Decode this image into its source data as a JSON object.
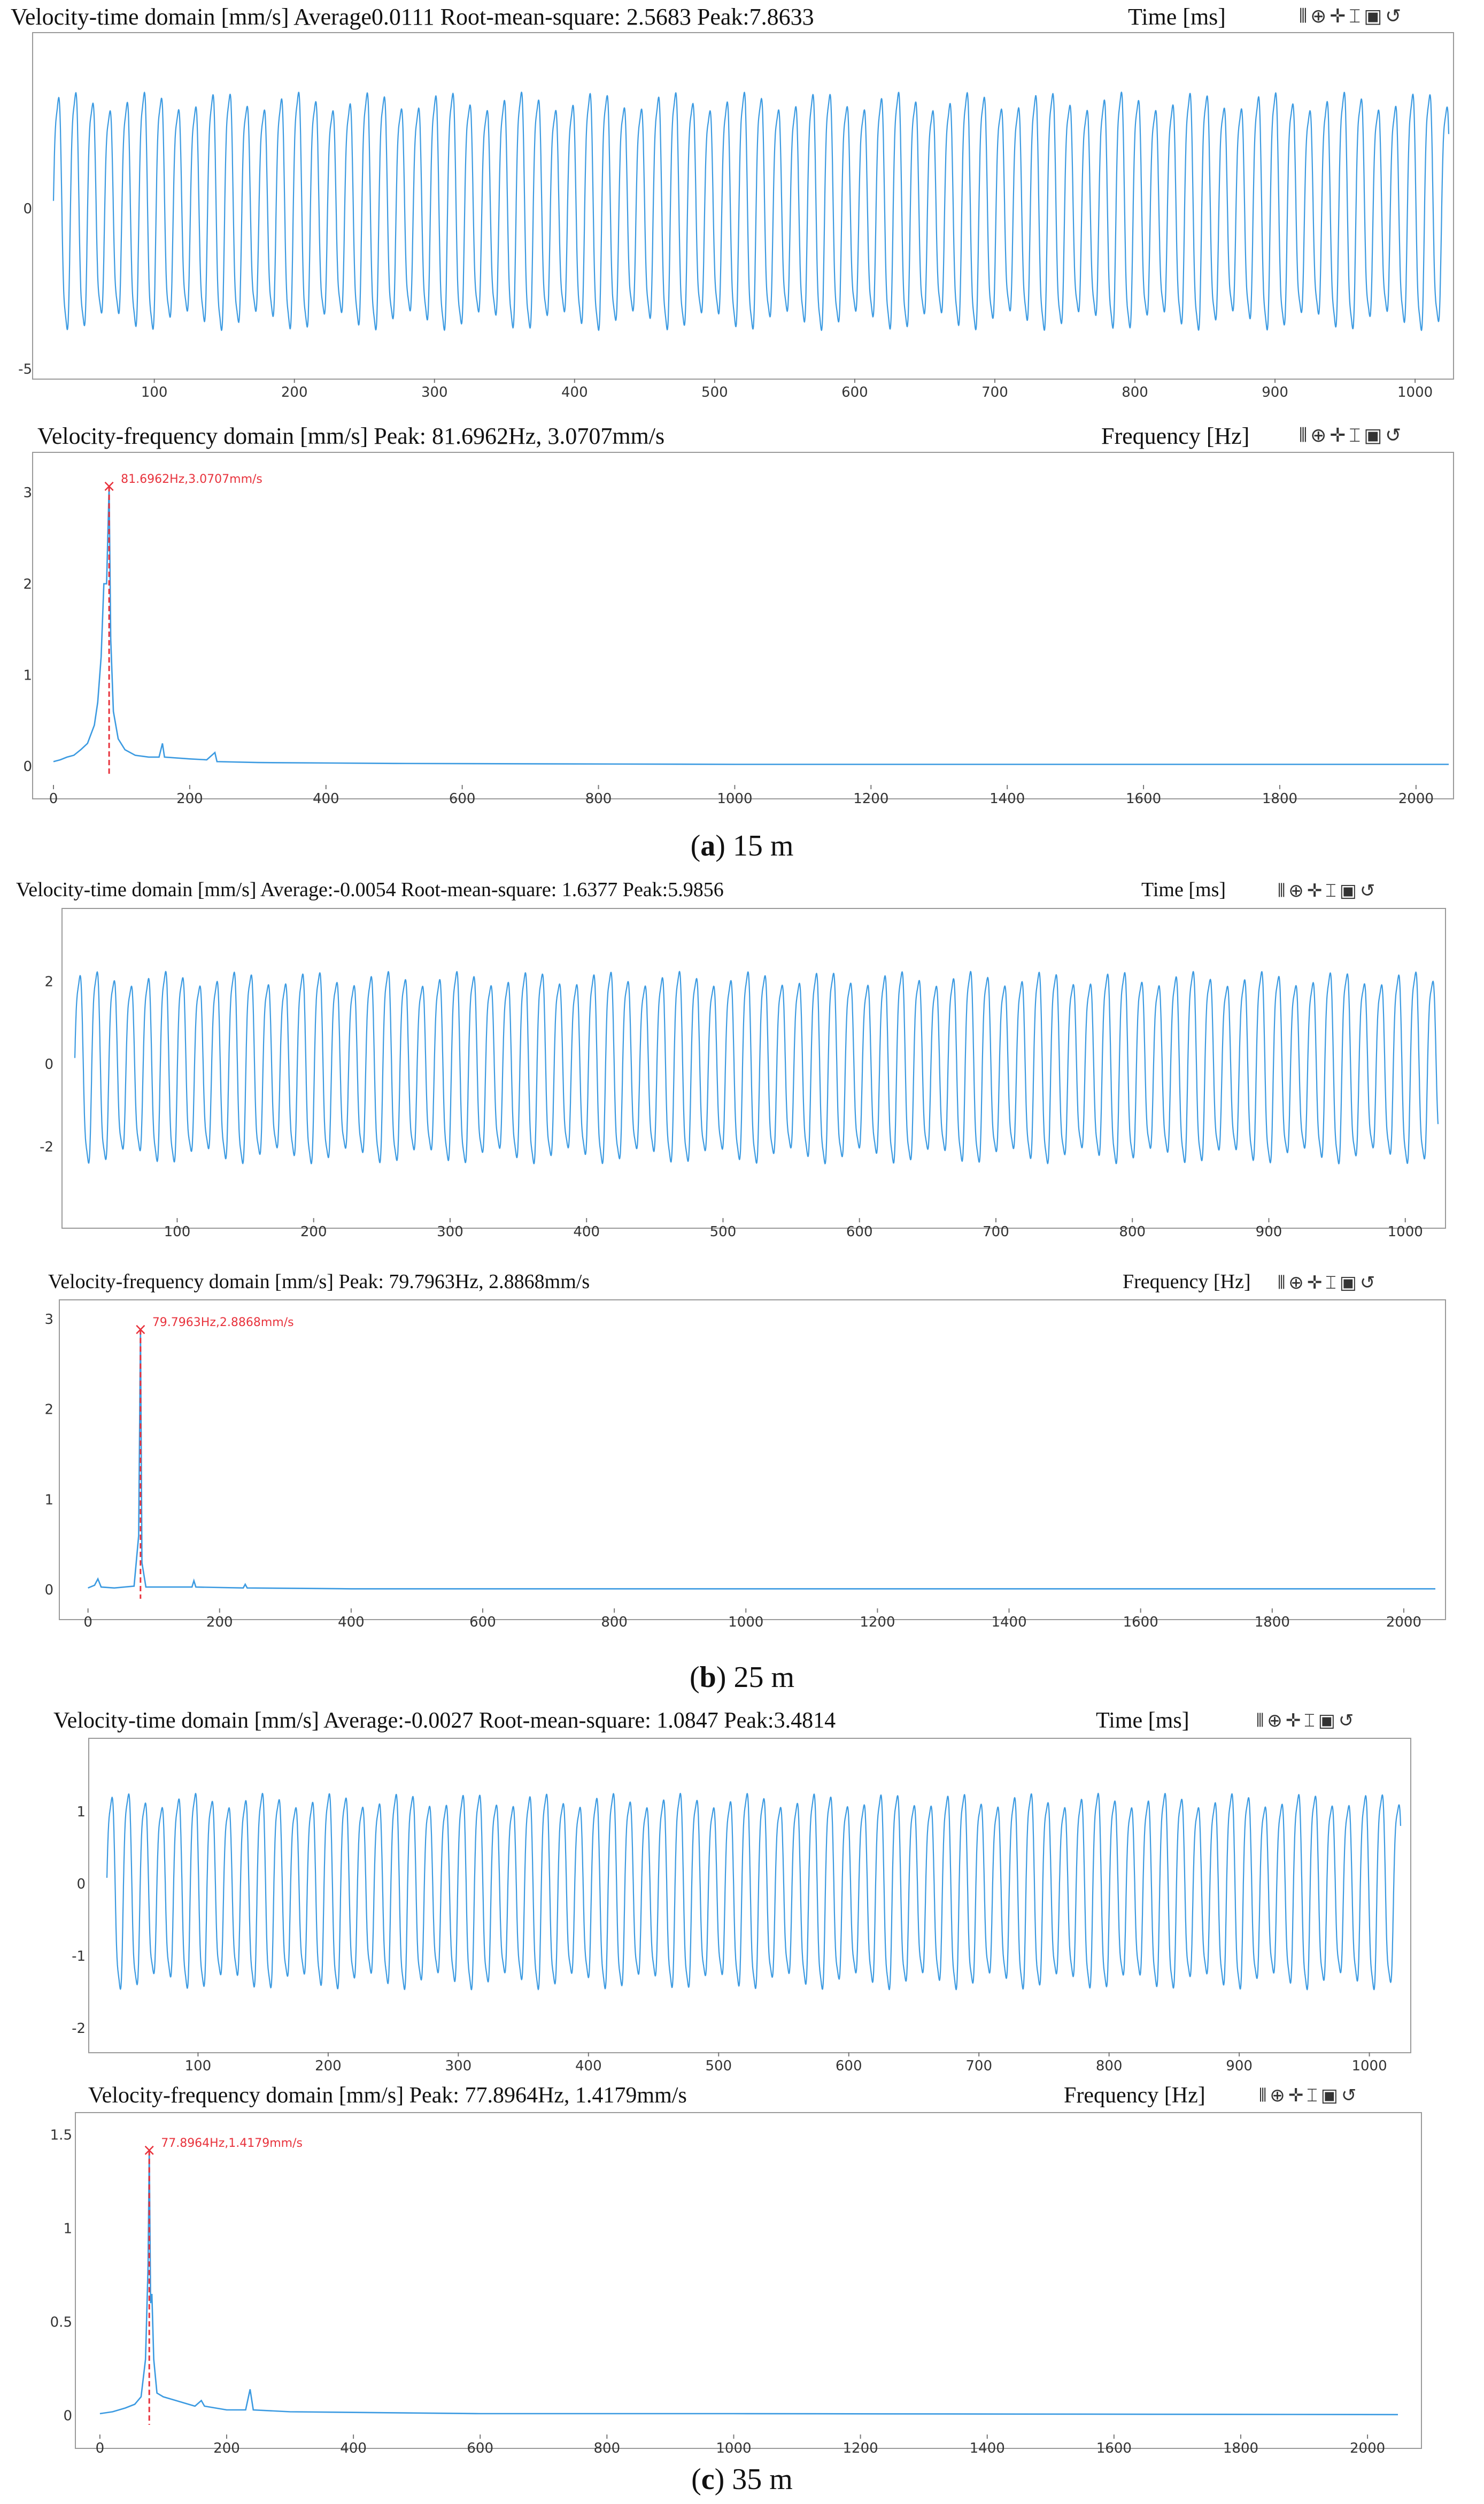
{
  "panels": [
    {
      "caption_letter": "a",
      "caption_rest": " 15 m",
      "time": {
        "title": "Velocity-time domain [mm/s] Average0.0111 Root-mean-square: 2.5683 Peak:7.8633",
        "axis_unit_label": "Time [ms]",
        "toolbar_icons": [
          "pan-icon",
          "zoom-icon",
          "move-icon",
          "cursor-icon",
          "fit-icon",
          "reset-icon"
        ]
      },
      "freq": {
        "title": "Velocity-frequency domain [mm/s] Peak: 81.6962Hz, 3.0707mm/s",
        "axis_unit_label": "Frequency [Hz]",
        "marker_label": "81.6962Hz,3.0707mm/s",
        "toolbar_icons": [
          "pan-icon",
          "zoom-icon",
          "move-icon",
          "cursor-icon",
          "fit-icon",
          "reset-icon"
        ]
      }
    },
    {
      "caption_letter": "b",
      "caption_rest": " 25 m",
      "time": {
        "title": "Velocity-time domain [mm/s] Average:-0.0054 Root-mean-square: 1.6377 Peak:5.9856",
        "axis_unit_label": "Time [ms]",
        "toolbar_icons": [
          "pan-icon",
          "zoom-icon",
          "move-icon",
          "cursor-icon",
          "fit-icon",
          "reset-icon"
        ]
      },
      "freq": {
        "title": "Velocity-frequency domain [mm/s] Peak: 79.7963Hz, 2.8868mm/s",
        "axis_unit_label": "Frequency [Hz]",
        "marker_label": "79.7963Hz,2.8868mm/s",
        "toolbar_icons": [
          "pan-icon",
          "zoom-icon",
          "move-icon",
          "cursor-icon",
          "fit-icon",
          "reset-icon"
        ]
      }
    },
    {
      "caption_letter": "c",
      "caption_rest": " 35 m",
      "time": {
        "title": "Velocity-time domain [mm/s] Average:-0.0027 Root-mean-square: 1.0847 Peak:3.4814",
        "axis_unit_label": "Time [ms]",
        "toolbar_icons": [
          "pan-icon",
          "zoom-icon",
          "move-icon",
          "cursor-icon",
          "fit-icon",
          "reset-icon"
        ]
      },
      "freq": {
        "title": "Velocity-frequency domain [mm/s] Peak: 77.8964Hz, 1.4179mm/s",
        "axis_unit_label": "Frequency [Hz]",
        "marker_label": "77.8964Hz,1.4179mm/s",
        "toolbar_icons": [
          "pan-icon",
          "zoom-icon",
          "move-icon",
          "cursor-icon",
          "fit-icon",
          "reset-icon"
        ]
      }
    }
  ],
  "colors": {
    "signal": "#3b9ae1",
    "marker": "#e8323c",
    "axis_text": "#333333",
    "frame": "#9a9a9a"
  },
  "chart_data": [
    {
      "panel": "a",
      "kind": "time",
      "type": "line",
      "xlim": [
        28,
        1024
      ],
      "ylim": [
        -5,
        5
      ],
      "x_ticks": [
        100,
        200,
        300,
        400,
        500,
        600,
        700,
        800,
        900,
        1000
      ],
      "y_ticks": [
        -5,
        0
      ],
      "cycles": 81.4,
      "amp_pos": 4.2,
      "amp_neg": -4.4
    },
    {
      "panel": "a",
      "kind": "freq",
      "type": "line",
      "xlim": [
        0,
        2048
      ],
      "ylim": [
        -0.1,
        3.3
      ],
      "x_ticks": [
        0,
        200,
        400,
        600,
        800,
        1000,
        1200,
        1400,
        1600,
        1800,
        2000
      ],
      "y_ticks": [
        0,
        1,
        2,
        3
      ],
      "peak": {
        "x": 81.6962,
        "y": 3.0707
      },
      "series": [
        [
          0,
          0.05
        ],
        [
          10,
          0.07
        ],
        [
          20,
          0.1
        ],
        [
          30,
          0.12
        ],
        [
          40,
          0.18
        ],
        [
          50,
          0.25
        ],
        [
          60,
          0.45
        ],
        [
          65,
          0.7
        ],
        [
          70,
          1.2
        ],
        [
          74,
          2.0
        ],
        [
          78,
          2.0
        ],
        [
          81.7,
          3.0707
        ],
        [
          84,
          1.4
        ],
        [
          88,
          0.6
        ],
        [
          95,
          0.3
        ],
        [
          105,
          0.18
        ],
        [
          120,
          0.12
        ],
        [
          140,
          0.1
        ],
        [
          155,
          0.1
        ],
        [
          160,
          0.25
        ],
        [
          163,
          0.1
        ],
        [
          200,
          0.08
        ],
        [
          225,
          0.07
        ],
        [
          237,
          0.15
        ],
        [
          240,
          0.05
        ],
        [
          300,
          0.04
        ],
        [
          500,
          0.03
        ],
        [
          1000,
          0.02
        ],
        [
          1500,
          0.02
        ],
        [
          2048,
          0.02
        ]
      ]
    },
    {
      "panel": "b",
      "kind": "time",
      "type": "line",
      "xlim": [
        25,
        1024
      ],
      "ylim": [
        -3.5,
        3.5
      ],
      "x_ticks": [
        100,
        200,
        300,
        400,
        500,
        600,
        700,
        800,
        900,
        1000
      ],
      "y_ticks": [
        -2,
        0,
        2
      ],
      "cycles": 79.6,
      "amp_pos": 2.6,
      "amp_neg": -2.8
    },
    {
      "panel": "b",
      "kind": "freq",
      "type": "line",
      "xlim": [
        -20,
        2048
      ],
      "ylim": [
        -0.1,
        3.1
      ],
      "x_ticks": [
        0,
        200,
        400,
        600,
        800,
        1000,
        1200,
        1400,
        1600,
        1800,
        2000
      ],
      "y_ticks": [
        0,
        1,
        2,
        3
      ],
      "peak": {
        "x": 79.7963,
        "y": 2.8868
      },
      "series": [
        [
          0,
          0.02
        ],
        [
          10,
          0.05
        ],
        [
          15,
          0.12
        ],
        [
          20,
          0.03
        ],
        [
          40,
          0.02
        ],
        [
          70,
          0.04
        ],
        [
          77,
          0.6
        ],
        [
          79.8,
          2.8868
        ],
        [
          82,
          0.3
        ],
        [
          88,
          0.03
        ],
        [
          158,
          0.03
        ],
        [
          161,
          0.1
        ],
        [
          164,
          0.03
        ],
        [
          236,
          0.02
        ],
        [
          239,
          0.06
        ],
        [
          242,
          0.02
        ],
        [
          400,
          0.01
        ],
        [
          1000,
          0.01
        ],
        [
          2048,
          0.01
        ]
      ]
    },
    {
      "panel": "c",
      "kind": "time",
      "type": "line",
      "xlim": [
        30,
        1024
      ],
      "ylim": [
        -2.2,
        1.8
      ],
      "x_ticks": [
        100,
        200,
        300,
        400,
        500,
        600,
        700,
        800,
        900,
        1000
      ],
      "y_ticks": [
        -2,
        -1,
        0,
        1
      ],
      "cycles": 77.4,
      "amp_pos": 1.45,
      "amp_neg": -1.7
    },
    {
      "panel": "c",
      "kind": "freq",
      "type": "line",
      "xlim": [
        -10,
        2048
      ],
      "ylim": [
        -0.05,
        1.55
      ],
      "x_ticks": [
        0,
        200,
        400,
        600,
        800,
        1000,
        1200,
        1400,
        1600,
        1800,
        2000
      ],
      "y_ticks": [
        0,
        0.5,
        1,
        1.5
      ],
      "peak": {
        "x": 77.8964,
        "y": 1.4179
      },
      "series": [
        [
          0,
          0.01
        ],
        [
          20,
          0.02
        ],
        [
          40,
          0.04
        ],
        [
          55,
          0.06
        ],
        [
          65,
          0.1
        ],
        [
          72,
          0.3
        ],
        [
          76,
          0.8
        ],
        [
          77.9,
          1.4179
        ],
        [
          80,
          0.6
        ],
        [
          82,
          0.65
        ],
        [
          85,
          0.3
        ],
        [
          90,
          0.12
        ],
        [
          100,
          0.1
        ],
        [
          120,
          0.08
        ],
        [
          150,
          0.05
        ],
        [
          160,
          0.08
        ],
        [
          165,
          0.05
        ],
        [
          200,
          0.03
        ],
        [
          230,
          0.03
        ],
        [
          237,
          0.14
        ],
        [
          242,
          0.03
        ],
        [
          300,
          0.02
        ],
        [
          600,
          0.01
        ],
        [
          1000,
          0.01
        ],
        [
          2048,
          0.005
        ]
      ]
    }
  ]
}
